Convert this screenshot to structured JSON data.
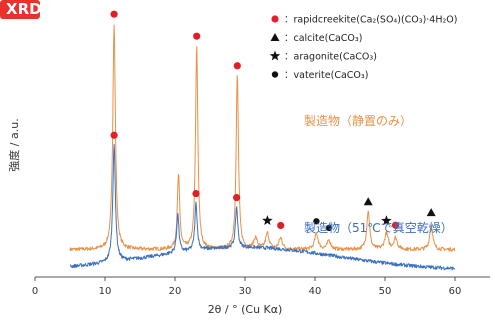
{
  "badge": {
    "text": "XRD",
    "color": "#e8322b"
  },
  "chart_data": {
    "type": "line",
    "xlabel": "2θ / °  (Cu Kα)",
    "ylabel": "強度 / a.u.",
    "xlim": [
      0,
      65
    ],
    "x_ticks": [
      0,
      10,
      20,
      30,
      40,
      50,
      60
    ],
    "grid": false,
    "legend_position": "top-right",
    "legend": [
      {
        "marker": "circle-red",
        "text": "：rapidcreekite(Ca₂(SO₄)(CO₃)·4H₂O)"
      },
      {
        "marker": "triangle",
        "text": "：calcite(CaCO₃)"
      },
      {
        "marker": "star",
        "text": "：aragonite(CaCO₃)"
      },
      {
        "marker": "circle-black",
        "text": "：vaterite(CaCO₃)"
      }
    ],
    "series": [
      {
        "name": "製造物（静置のみ）",
        "color": "#e8914a",
        "baseline": 0.09,
        "noise": 0.008,
        "x_range": [
          5,
          60
        ],
        "hump": {
          "center": 30,
          "width": 12,
          "height": 0.0
        },
        "peaks": [
          {
            "x": 11.3,
            "h": 1.0,
            "w": 0.22,
            "marker": "circle-red"
          },
          {
            "x": 20.5,
            "h": 0.33,
            "w": 0.2
          },
          {
            "x": 23.1,
            "h": 0.9,
            "w": 0.2,
            "marker": "circle-red"
          },
          {
            "x": 28.9,
            "h": 0.77,
            "w": 0.2,
            "marker": "circle-red"
          },
          {
            "x": 31.5,
            "h": 0.05,
            "w": 0.3
          },
          {
            "x": 33.2,
            "h": 0.07,
            "w": 0.3,
            "marker": "star"
          },
          {
            "x": 35.1,
            "h": 0.05,
            "w": 0.3,
            "marker": "circle-red"
          },
          {
            "x": 40.2,
            "h": 0.07,
            "w": 0.3,
            "marker": "circle-black"
          },
          {
            "x": 42.0,
            "h": 0.04,
            "w": 0.3,
            "marker": "circle-black"
          },
          {
            "x": 47.6,
            "h": 0.17,
            "w": 0.25,
            "marker": "triangle"
          },
          {
            "x": 50.2,
            "h": 0.07,
            "w": 0.3,
            "marker": "star"
          },
          {
            "x": 51.5,
            "h": 0.05,
            "w": 0.3,
            "marker": "circle-red"
          },
          {
            "x": 56.6,
            "h": 0.11,
            "w": 0.25,
            "marker": "triangle"
          }
        ]
      },
      {
        "name": "製造物（51℃で真空乾燥）",
        "color": "#3a6fc4",
        "baseline": 0.0,
        "noise": 0.008,
        "x_range": [
          5,
          60
        ],
        "hump": {
          "center": 30,
          "width": 13,
          "height": 0.1
        },
        "peaks": [
          {
            "x": 11.3,
            "h": 0.52,
            "w": 0.22,
            "marker": "circle-red"
          },
          {
            "x": 20.4,
            "h": 0.17,
            "w": 0.2
          },
          {
            "x": 23.0,
            "h": 0.21,
            "w": 0.2,
            "marker": "circle-red"
          },
          {
            "x": 28.8,
            "h": 0.18,
            "w": 0.2,
            "marker": "circle-red"
          }
        ]
      }
    ]
  }
}
